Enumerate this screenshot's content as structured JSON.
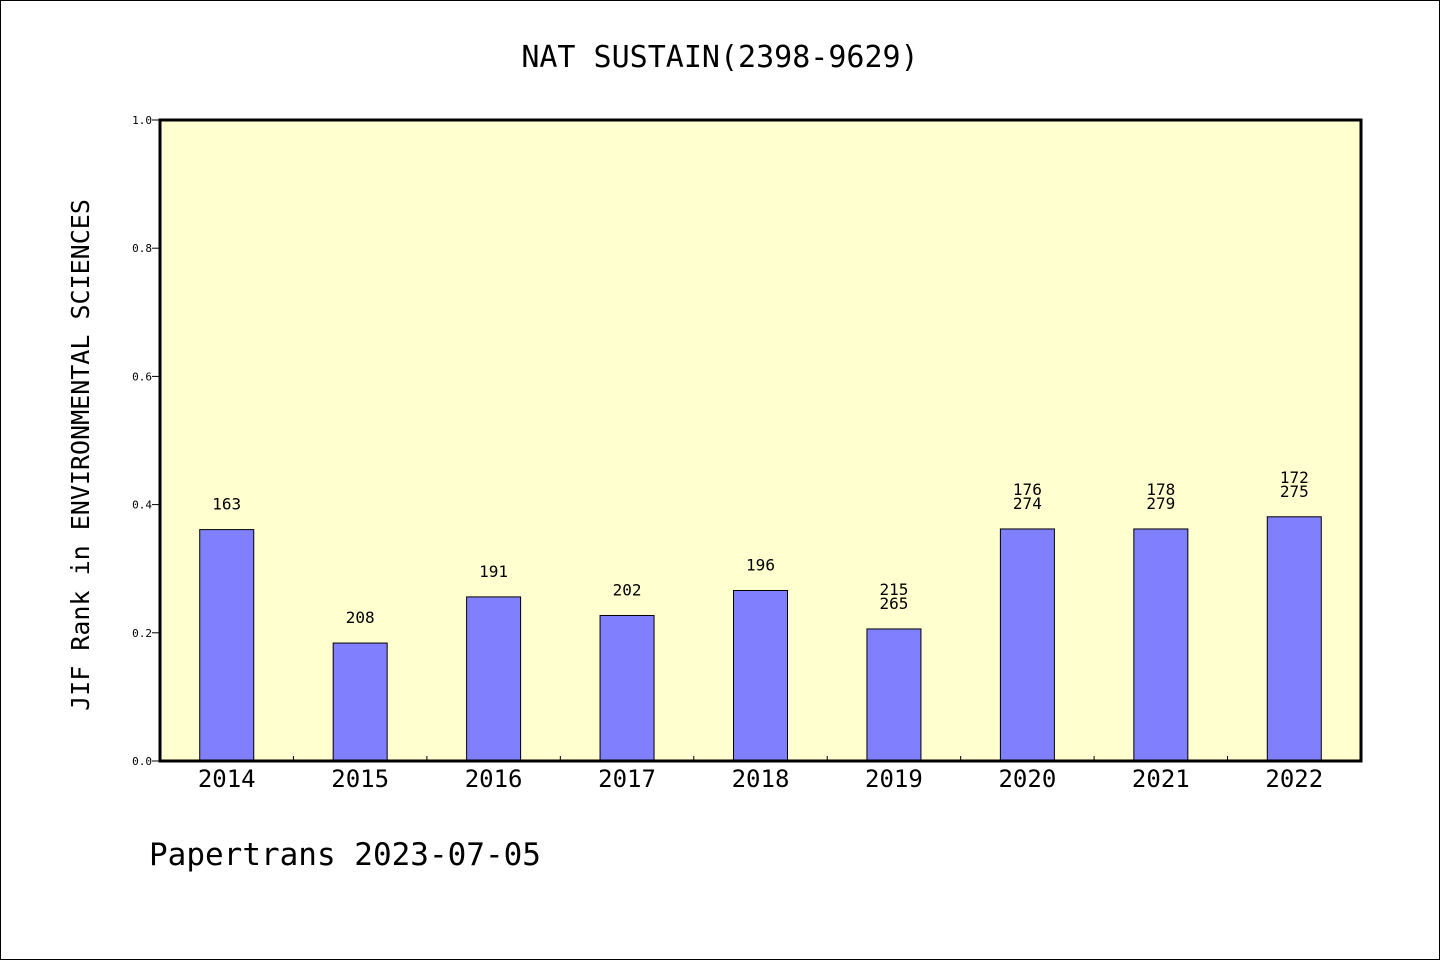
{
  "chart_data": {
    "type": "bar",
    "title": "NAT SUSTAIN(2398-9629)",
    "ylabel": "JIF Rank in ENVIRONMENTAL SCIENCES",
    "xlabel": "",
    "categories": [
      "2014",
      "2015",
      "2016",
      "2017",
      "2018",
      "2019",
      "2020",
      "2021",
      "2022"
    ],
    "values": [
      0.361,
      0.184,
      0.256,
      0.227,
      0.266,
      0.206,
      0.362,
      0.362,
      0.381
    ],
    "data_labels": [
      [
        "163"
      ],
      [
        "208"
      ],
      [
        "191"
      ],
      [
        "202"
      ],
      [
        "196"
      ],
      [
        "215",
        "265"
      ],
      [
        "176",
        "274"
      ],
      [
        "178",
        "279"
      ],
      [
        "172",
        "275"
      ]
    ],
    "ylim": [
      0,
      1.0
    ],
    "yticks": [
      "0.0",
      "0.2",
      "0.4",
      "0.6",
      "0.8",
      "1.0"
    ],
    "grid": false,
    "plot_background": "#ffffd0",
    "bar_color": "#8080ff",
    "footer": "Papertrans 2023-07-05"
  }
}
